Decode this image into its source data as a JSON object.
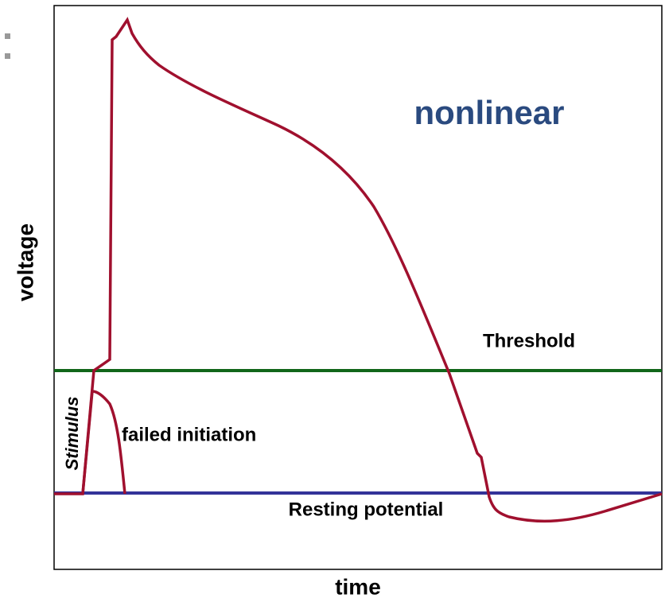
{
  "labels": {
    "regime": "nonlinear",
    "threshold": "Threshold",
    "failed": "failed initiation",
    "stimulus": "Stimulus",
    "resting": "Resting potential"
  },
  "axes": {
    "y": "voltage",
    "x": "time"
  }
}
